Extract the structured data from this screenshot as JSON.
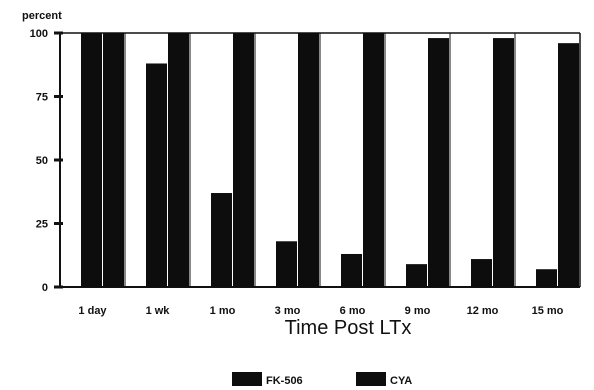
{
  "chart_data": {
    "type": "bar",
    "ylabel": "percent",
    "xlabel": "Time Post LTx",
    "categories": [
      "1 day",
      "1 wk",
      "1 mo",
      "3 mo",
      "6 mo",
      "9 mo",
      "12 mo",
      "15 mo"
    ],
    "series": [
      {
        "name": "FK-506",
        "values": [
          100,
          88,
          37,
          18,
          13,
          9,
          11,
          7
        ]
      },
      {
        "name": "CYA",
        "values": [
          100,
          100,
          100,
          100,
          100,
          98,
          98,
          96
        ]
      }
    ],
    "ylim": [
      0,
      100
    ],
    "yticks": [
      0,
      25,
      50,
      75,
      100
    ],
    "grid": false,
    "legend_position": "bottom-center",
    "colors": {
      "bars": "#0d0d0d",
      "axes": "#111111",
      "background": "#ffffff"
    }
  }
}
